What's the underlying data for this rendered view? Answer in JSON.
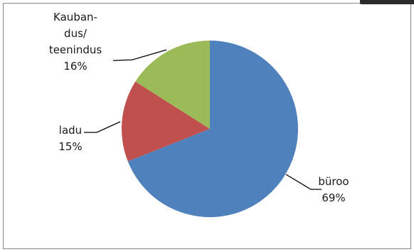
{
  "chart_data": {
    "type": "pie",
    "slices": [
      {
        "label": [
          "büroo"
        ],
        "percent_label": "69%",
        "value": 69,
        "color": "#4f81bd"
      },
      {
        "label": [
          "ladu"
        ],
        "percent_label": "15%",
        "value": 15,
        "color": "#c0504d"
      },
      {
        "label": [
          "Kauban-",
          "dus/",
          "teenindus"
        ],
        "percent_label": "16%",
        "value": 16,
        "color": "#9bbb59"
      }
    ],
    "start_angle_deg": 0,
    "direction": "clockwise",
    "legend": "none"
  }
}
